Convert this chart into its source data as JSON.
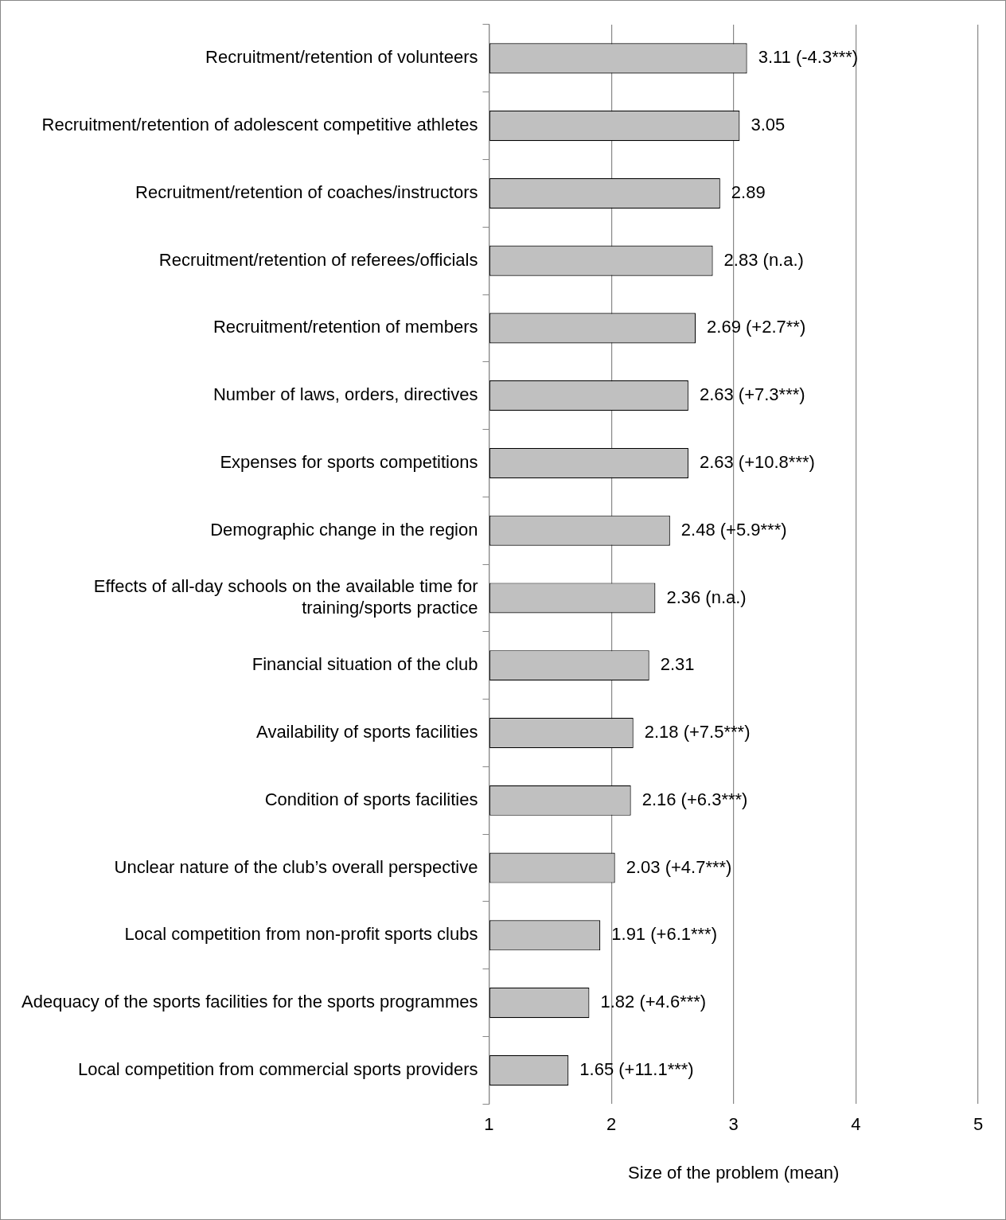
{
  "chart_data": {
    "type": "bar",
    "orientation": "horizontal",
    "xlabel": "Size of the problem (mean)",
    "categories": [
      "Recruitment/retention of volunteers",
      "Recruitment/retention of adolescent competitive athletes",
      "Recruitment/retention of coaches/instructors",
      "Recruitment/retention of referees/officials",
      "Recruitment/retention of members",
      "Number of laws, orders, directives",
      "Expenses for sports competitions",
      "Demographic change in the region",
      "Effects of all-day schools on the available time for training/sports practice",
      "Financial situation of the club",
      "Availability of sports facilities",
      "Condition of sports facilities",
      "Unclear nature of the club’s overall perspective",
      "Local competition from non-profit sports clubs",
      "Adequacy of the sports facilities for the sports programmes",
      "Local competition from commercial sports providers"
    ],
    "values": [
      3.11,
      3.05,
      2.89,
      2.83,
      2.69,
      2.63,
      2.63,
      2.48,
      2.36,
      2.31,
      2.18,
      2.16,
      2.03,
      1.91,
      1.82,
      1.65
    ],
    "value_labels": [
      "3.11 (-4.3***)",
      "3.05",
      "2.89",
      "2.83 (n.a.)",
      "2.69 (+2.7**)",
      "2.63 (+7.3***)",
      "2.63 (+10.8***)",
      "2.48 (+5.9***)",
      "2.36 (n.a.)",
      "2.31",
      "2.18 (+7.5***)",
      "2.16 (+6.3***)",
      "2.03 (+4.7***)",
      "1.91 (+6.1***)",
      "1.82 (+4.6***)",
      "1.65 (+11.1***)"
    ],
    "color": "#c0c0c0",
    "xlim": [
      1,
      5
    ],
    "xticks": [
      1,
      2,
      3,
      4,
      5
    ],
    "grid": "x"
  }
}
